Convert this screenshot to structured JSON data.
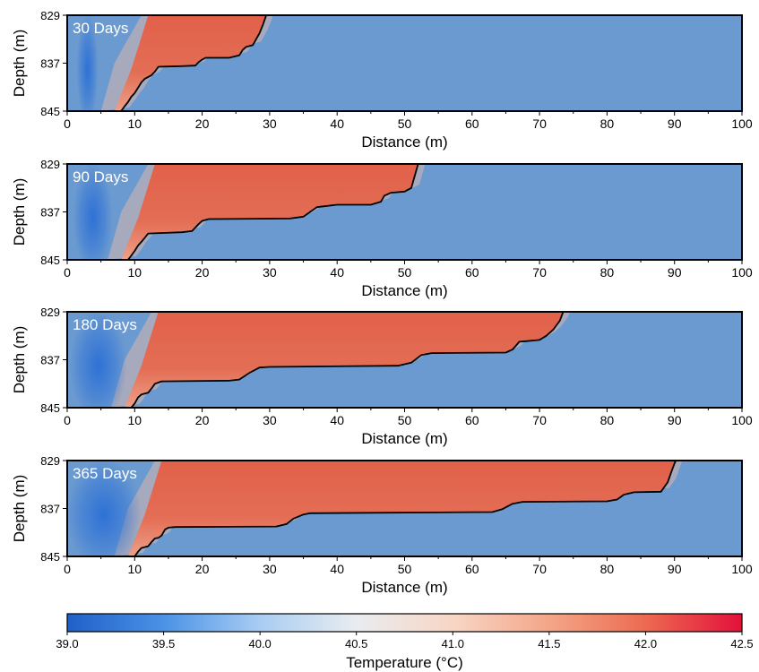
{
  "colors": {
    "cold": "#2b6fd6",
    "background": "#6b9ad0",
    "warm": "#e36e55",
    "front_line": "#000000",
    "label_text": "#ffffff"
  },
  "chart_data": [
    {
      "type": "heatmap",
      "title": "30 Days",
      "xlabel": "Distance (m)",
      "ylabel": "Depth (m)",
      "xlim": [
        0,
        100
      ],
      "ylim": [
        845,
        829
      ],
      "xticks": [
        "0",
        "10",
        "20",
        "30",
        "40",
        "50",
        "60",
        "70",
        "80",
        "90",
        "100"
      ],
      "yticks": [
        "829",
        "837",
        "845"
      ],
      "front": [
        [
          8,
          845
        ],
        [
          8.5,
          844.2
        ],
        [
          9,
          843.5
        ],
        [
          9.5,
          842.6
        ],
        [
          10,
          842
        ],
        [
          10.5,
          841.1
        ],
        [
          11,
          840.2
        ],
        [
          11.5,
          839.6
        ],
        [
          12.5,
          839
        ],
        [
          13,
          838.4
        ],
        [
          13.5,
          837.6
        ],
        [
          17,
          837.5
        ],
        [
          19,
          837.4
        ],
        [
          19.5,
          836.8
        ],
        [
          20,
          836.4
        ],
        [
          20.5,
          836.1
        ],
        [
          24,
          836.1
        ],
        [
          25.5,
          835.7
        ],
        [
          26,
          834.8
        ],
        [
          26.5,
          834.3
        ],
        [
          27.5,
          834
        ],
        [
          28,
          833
        ],
        [
          28.5,
          832
        ],
        [
          29,
          830.6
        ],
        [
          29.5,
          829
        ]
      ]
    },
    {
      "type": "heatmap",
      "title": "90 Days",
      "xlabel": "Distance (m)",
      "ylabel": "Depth (m)",
      "xlim": [
        0,
        100
      ],
      "ylim": [
        845,
        829
      ],
      "xticks": [
        "0",
        "10",
        "20",
        "30",
        "40",
        "50",
        "60",
        "70",
        "80",
        "90",
        "100"
      ],
      "yticks": [
        "829",
        "837",
        "845"
      ],
      "front": [
        [
          9,
          845
        ],
        [
          9.5,
          844.3
        ],
        [
          10,
          843.5
        ],
        [
          10.5,
          842.6
        ],
        [
          11,
          842
        ],
        [
          11.5,
          841.3
        ],
        [
          12,
          840.6
        ],
        [
          17,
          840.4
        ],
        [
          18.5,
          840.2
        ],
        [
          19.5,
          839
        ],
        [
          20,
          838.5
        ],
        [
          21,
          838.2
        ],
        [
          33,
          838.1
        ],
        [
          35,
          837.8
        ],
        [
          36,
          837
        ],
        [
          37,
          836.2
        ],
        [
          40,
          835.8
        ],
        [
          45,
          835.8
        ],
        [
          46.5,
          835.3
        ],
        [
          47,
          834.3
        ],
        [
          48,
          833.8
        ],
        [
          50,
          833.6
        ],
        [
          51,
          833
        ],
        [
          51.5,
          831
        ],
        [
          52,
          829
        ]
      ]
    },
    {
      "type": "heatmap",
      "title": "180 Days",
      "xlabel": "Distance (m)",
      "ylabel": "Depth (m)",
      "xlim": [
        0,
        100
      ],
      "ylim": [
        845,
        829
      ],
      "xticks": [
        "0",
        "10",
        "20",
        "30",
        "40",
        "50",
        "60",
        "70",
        "80",
        "90",
        "100"
      ],
      "yticks": [
        "829",
        "837",
        "845"
      ],
      "front": [
        [
          9.5,
          845
        ],
        [
          10,
          844.3
        ],
        [
          10.5,
          843.3
        ],
        [
          11,
          842.8
        ],
        [
          12,
          842.5
        ],
        [
          12.5,
          841.8
        ],
        [
          13,
          841
        ],
        [
          14,
          840.6
        ],
        [
          24,
          840.5
        ],
        [
          25.5,
          840.3
        ],
        [
          27,
          839.2
        ],
        [
          28.5,
          838.3
        ],
        [
          30,
          838.2
        ],
        [
          49,
          838
        ],
        [
          51,
          837.5
        ],
        [
          52.5,
          836.2
        ],
        [
          54,
          835.9
        ],
        [
          65,
          835.8
        ],
        [
          66,
          835.3
        ],
        [
          67,
          834
        ],
        [
          68,
          833.9
        ],
        [
          70,
          833.7
        ],
        [
          71,
          833
        ],
        [
          72,
          832
        ],
        [
          73,
          830.5
        ],
        [
          73.5,
          829
        ]
      ]
    },
    {
      "type": "heatmap",
      "title": "365 Days",
      "xlabel": "Distance (m)",
      "ylabel": "Depth (m)",
      "xlim": [
        0,
        100
      ],
      "ylim": [
        845,
        829
      ],
      "xticks": [
        "0",
        "10",
        "20",
        "30",
        "40",
        "50",
        "60",
        "70",
        "80",
        "90",
        "100"
      ],
      "yticks": [
        "829",
        "837",
        "845"
      ],
      "front": [
        [
          10,
          845
        ],
        [
          10.5,
          844.2
        ],
        [
          11,
          843.6
        ],
        [
          12,
          843.3
        ],
        [
          12.5,
          842.6
        ],
        [
          13,
          842
        ],
        [
          13.5,
          841.9
        ],
        [
          14,
          841.5
        ],
        [
          14.5,
          840.5
        ],
        [
          15,
          840.2
        ],
        [
          16,
          840.1
        ],
        [
          31,
          840
        ],
        [
          32.5,
          839.6
        ],
        [
          33.5,
          838.7
        ],
        [
          35,
          838
        ],
        [
          36,
          837.8
        ],
        [
          63,
          837.6
        ],
        [
          64.5,
          837.1
        ],
        [
          66,
          836.2
        ],
        [
          67.5,
          835.9
        ],
        [
          80,
          835.8
        ],
        [
          81.5,
          835.5
        ],
        [
          82.5,
          834.7
        ],
        [
          84,
          834.3
        ],
        [
          88,
          834.2
        ],
        [
          89,
          832.6
        ],
        [
          89.5,
          831
        ],
        [
          90,
          829.5
        ],
        [
          90.2,
          829
        ]
      ]
    },
    {
      "type": "colorbar",
      "xlabel": "Temperature (°C)",
      "range": [
        39.0,
        42.5
      ],
      "ticks": [
        "39.0",
        "39.5",
        "40.0",
        "40.5",
        "41.0",
        "41.5",
        "42.0",
        "42.5"
      ],
      "stops": [
        {
          "value": 39.0,
          "color": "#1f60c8"
        },
        {
          "value": 39.5,
          "color": "#4b92e6"
        },
        {
          "value": 40.0,
          "color": "#a9cdf3"
        },
        {
          "value": 40.5,
          "color": "#e9ecef"
        },
        {
          "value": 41.0,
          "color": "#f8d6c6"
        },
        {
          "value": 41.5,
          "color": "#f4a688"
        },
        {
          "value": 42.0,
          "color": "#ec6a51"
        },
        {
          "value": 42.5,
          "color": "#e3113b"
        }
      ]
    }
  ]
}
